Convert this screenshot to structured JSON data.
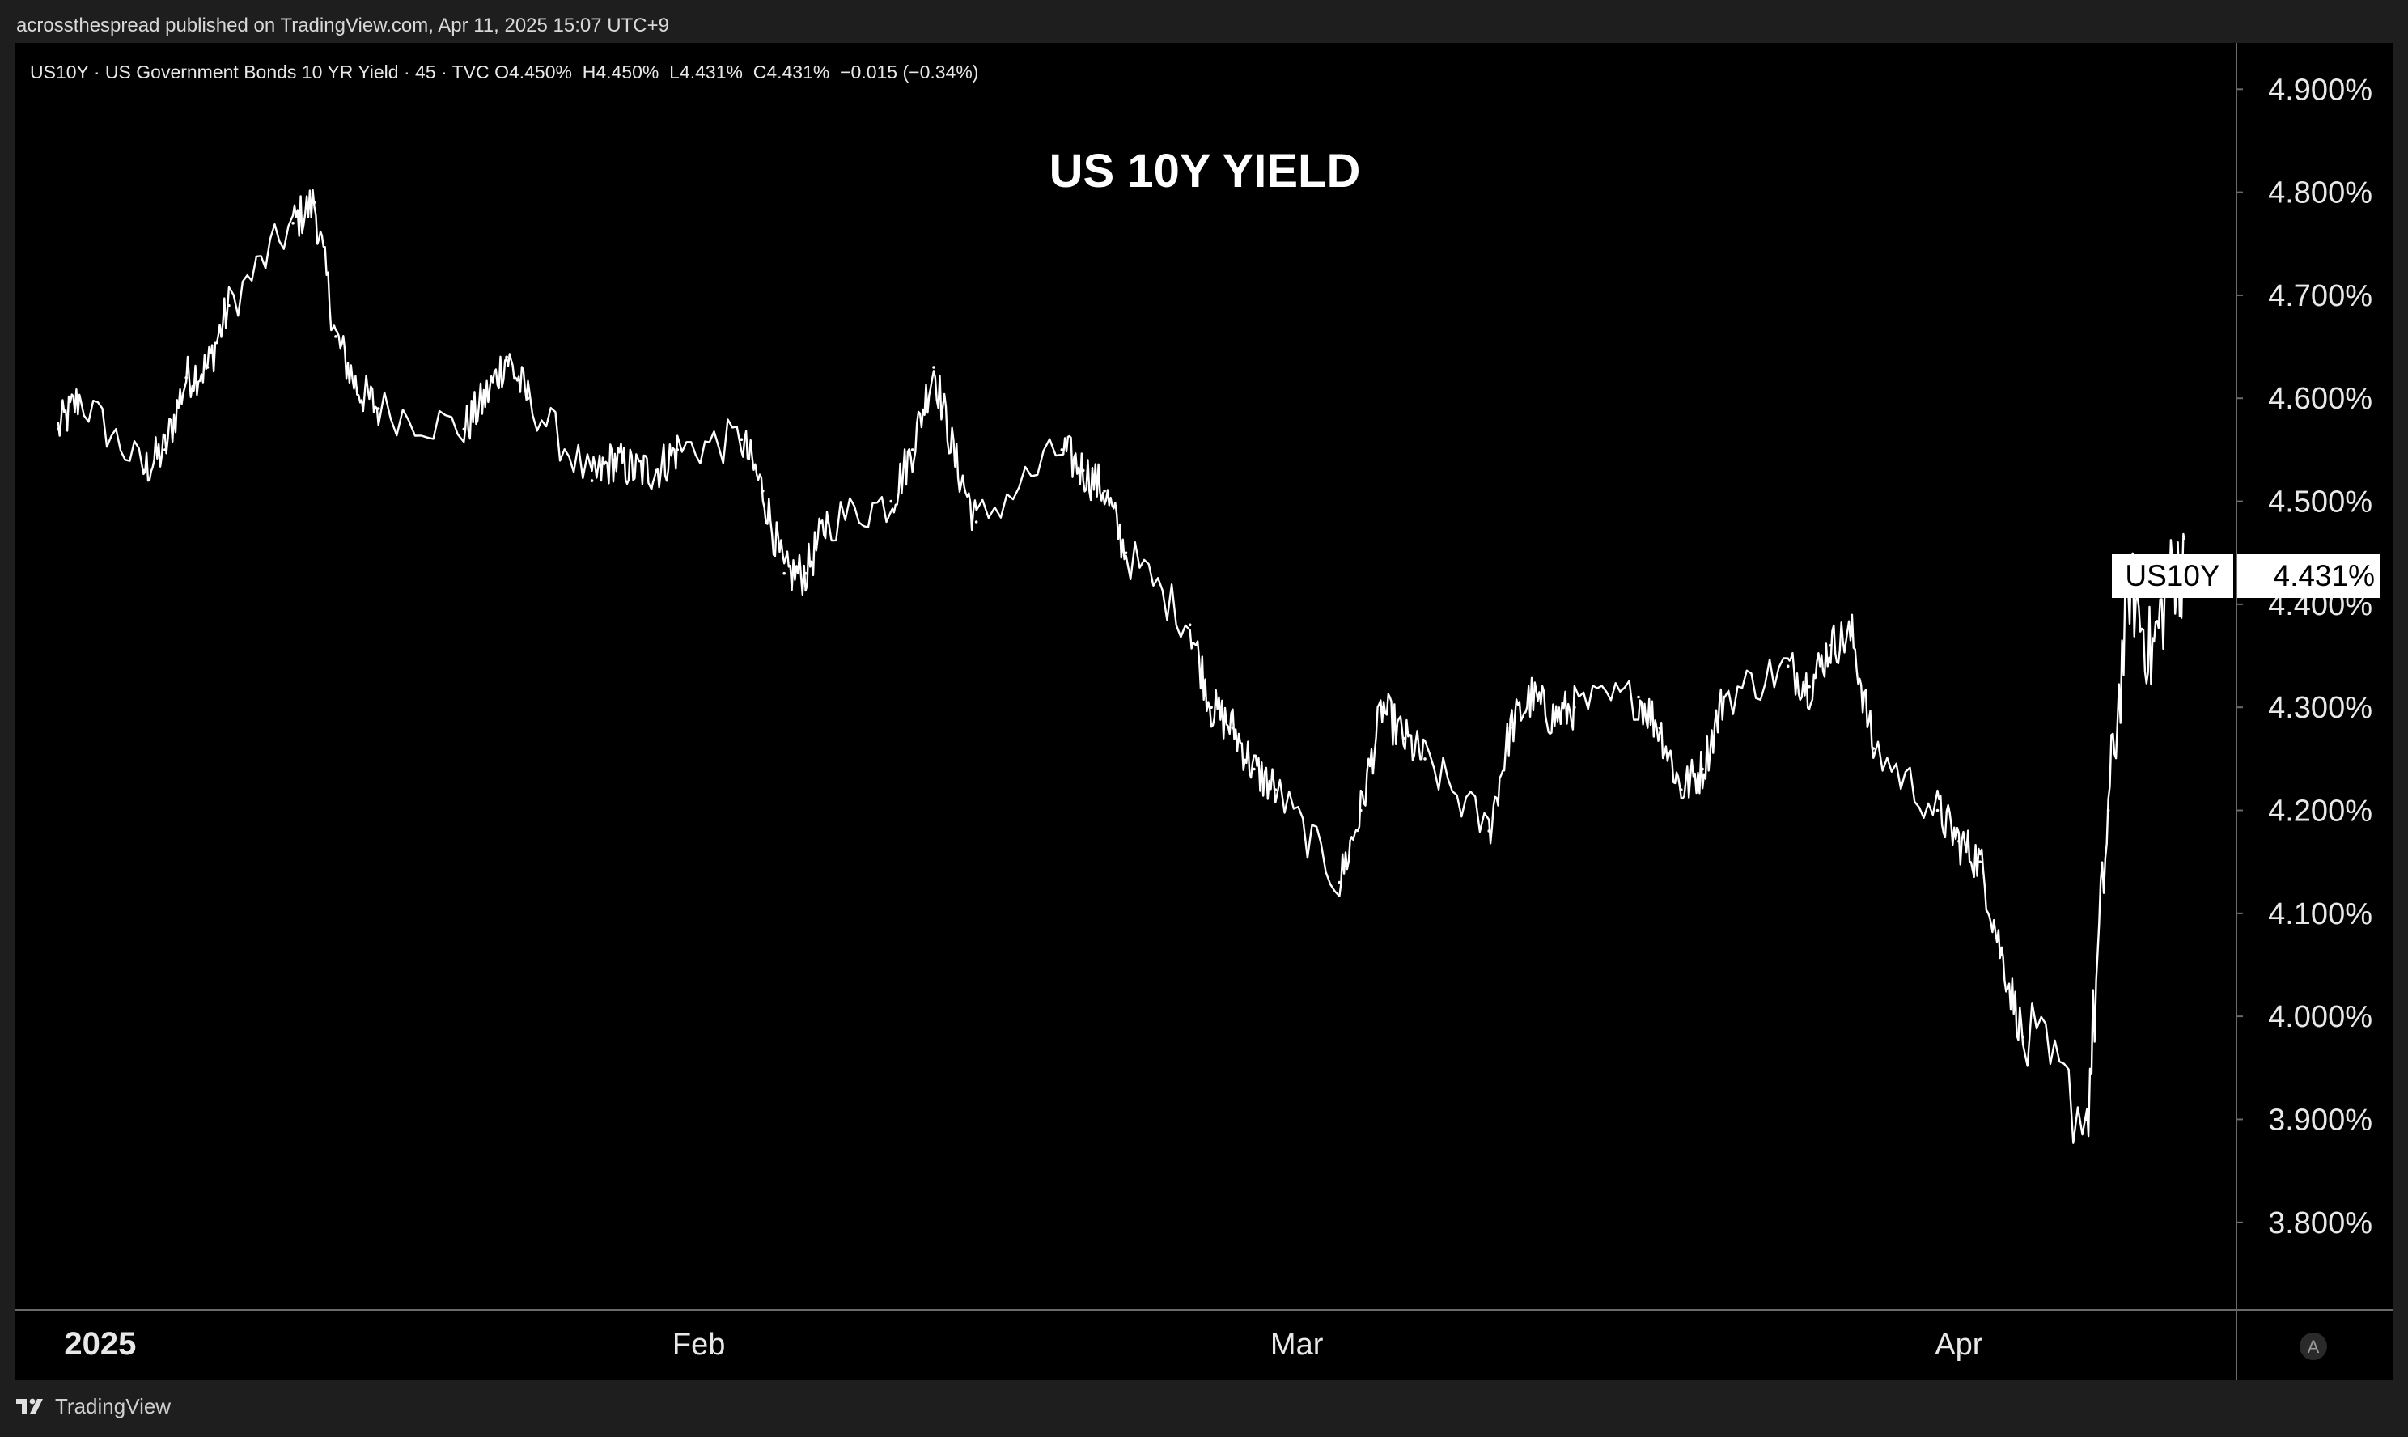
{
  "published_line": "acrossthespread published on TradingView.com, Apr 11, 2025 15:07 UTC+9",
  "footer": {
    "brand": "TradingView",
    "logo_icon": "tradingview-logo-icon"
  },
  "legend": {
    "symbol": "US10Y",
    "description": "US Government Bonds 10 YR Yield",
    "interval": "45",
    "source": "TVC",
    "ohlc": "O4.450%  H4.450%  L4.431%  C4.431%  −0.015 (−0.34%)"
  },
  "price_tag": {
    "symbol": "US10Y",
    "value": "4.431%"
  },
  "scale_mode_button": {
    "label": "A",
    "icon": "auto-scale-icon"
  },
  "colors": {
    "background": "#000000",
    "series": "#ffffff",
    "text": "#e8e8e8",
    "axis_line": "#6a6a6a",
    "outer": "#1e1e1e"
  },
  "chart_data": {
    "type": "line",
    "title": "US 10Y YIELD",
    "series": [
      {
        "name": "US10Y",
        "x": [
          "2025-01-02",
          "2025-01-03",
          "2025-01-06",
          "2025-01-07",
          "2025-01-08",
          "2025-01-09",
          "2025-01-10",
          "2025-01-13",
          "2025-01-14",
          "2025-01-15",
          "2025-01-16",
          "2025-01-17",
          "2025-01-21",
          "2025-01-22",
          "2025-01-23",
          "2025-01-24",
          "2025-01-27",
          "2025-01-28",
          "2025-01-29",
          "2025-01-30",
          "2025-01-31",
          "2025-02-03",
          "2025-02-04",
          "2025-02-05",
          "2025-02-06",
          "2025-02-07",
          "2025-02-10",
          "2025-02-11",
          "2025-02-12",
          "2025-02-13",
          "2025-02-14",
          "2025-02-18",
          "2025-02-19",
          "2025-02-20",
          "2025-02-21",
          "2025-02-24",
          "2025-02-25",
          "2025-02-26",
          "2025-02-27",
          "2025-02-28",
          "2025-03-03",
          "2025-03-04",
          "2025-03-05",
          "2025-03-06",
          "2025-03-07",
          "2025-03-10",
          "2025-03-11",
          "2025-03-12",
          "2025-03-13",
          "2025-03-14",
          "2025-03-17",
          "2025-03-18",
          "2025-03-19",
          "2025-03-20",
          "2025-03-21",
          "2025-03-24",
          "2025-03-25",
          "2025-03-26",
          "2025-03-27",
          "2025-03-28",
          "2025-03-31",
          "2025-04-01",
          "2025-04-02",
          "2025-04-03",
          "2025-04-04",
          "2025-04-07",
          "2025-04-08",
          "2025-04-09",
          "2025-04-10",
          "2025-04-11"
        ],
        "values": [
          4.57,
          4.6,
          4.53,
          4.55,
          4.62,
          4.63,
          4.69,
          4.77,
          4.79,
          4.66,
          4.61,
          4.59,
          4.57,
          4.6,
          4.64,
          4.6,
          4.52,
          4.54,
          4.53,
          4.53,
          4.55,
          4.56,
          4.51,
          4.43,
          4.43,
          4.48,
          4.5,
          4.55,
          4.63,
          4.54,
          4.48,
          4.55,
          4.53,
          4.51,
          4.45,
          4.38,
          4.3,
          4.28,
          4.24,
          4.22,
          4.13,
          4.2,
          4.3,
          4.27,
          4.25,
          4.18,
          4.28,
          4.31,
          4.29,
          4.3,
          4.31,
          4.28,
          4.22,
          4.24,
          4.31,
          4.34,
          4.32,
          4.36,
          4.37,
          4.26,
          4.2,
          4.17,
          4.15,
          4.06,
          3.98,
          3.9,
          4.2,
          4.42,
          4.35,
          4.431
        ]
      }
    ],
    "x_tick_labels": [
      "2025",
      "Feb",
      "Mar",
      "Apr"
    ],
    "x_tick_dates": [
      "2025-01-01",
      "2025-02-01",
      "2025-03-01",
      "2025-04-01"
    ],
    "y_tick_labels": [
      "4.900%",
      "4.800%",
      "4.700%",
      "4.600%",
      "4.500%",
      "4.400%",
      "4.300%",
      "4.200%",
      "4.100%",
      "4.000%",
      "3.900%",
      "3.800%"
    ],
    "xlim": [
      "2024-12-31",
      "2025-04-14"
    ],
    "ylim": [
      3.715,
      4.945
    ],
    "grid": false,
    "axis_position": "right"
  }
}
